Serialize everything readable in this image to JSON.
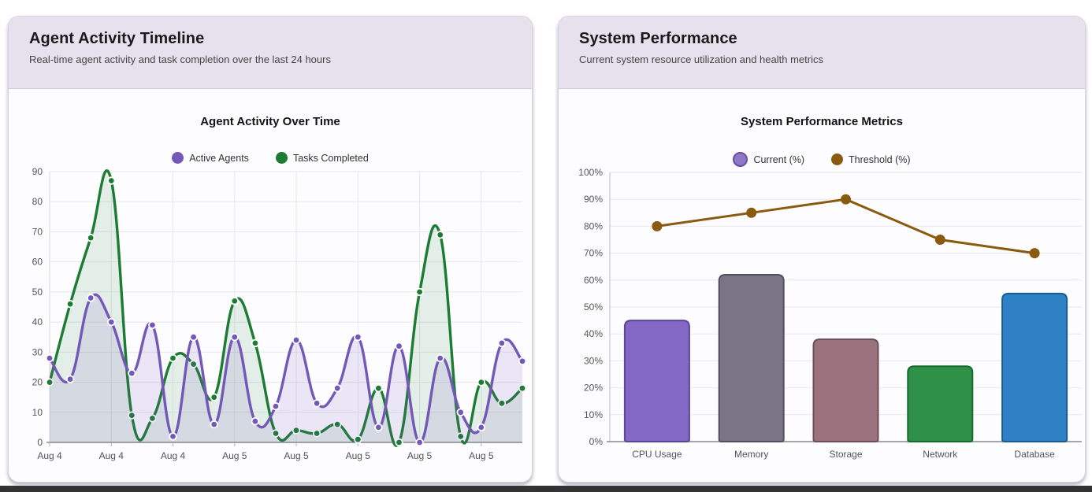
{
  "window": {
    "bottom_edge_color": "#333333",
    "card_header_bg": "#e7e1ed",
    "page_bg": "#ffffff"
  },
  "cards": [
    {
      "title": "Agent Activity Timeline",
      "subtitle": "Real-time agent activity and task completion over the last 24 hours"
    },
    {
      "title": "System Performance",
      "subtitle": "Current system resource utilization and health metrics"
    }
  ],
  "chart_data": [
    {
      "type": "area",
      "title": "Agent Activity Over Time",
      "legend_position": "top",
      "grid": true,
      "ylim": [
        0,
        90
      ],
      "yticks": [
        "0",
        "10",
        "20",
        "30",
        "40",
        "50",
        "60",
        "70",
        "80",
        "90"
      ],
      "tick_every": 3,
      "x_tick_labels": [
        "Aug 4",
        "Aug 4",
        "Aug 4",
        "Aug 5",
        "Aug 5",
        "Aug 5",
        "Aug 5",
        "Aug 5"
      ],
      "series": [
        {
          "name": "Active Agents",
          "color": "#7458b8",
          "fill": "rgba(116,88,184,0.13)",
          "values": [
            28,
            21,
            48,
            40,
            23,
            39,
            2,
            35,
            6,
            35,
            7,
            12,
            34,
            13,
            18,
            35,
            5,
            32,
            0,
            28,
            10,
            5,
            33,
            27
          ]
        },
        {
          "name": "Tasks Completed",
          "color": "#1c7c33",
          "fill": "rgba(28,124,51,0.11)",
          "values": [
            20,
            46,
            68,
            87,
            9,
            8,
            28,
            26,
            15,
            47,
            33,
            3,
            4,
            3,
            6,
            1,
            18,
            0,
            50,
            69,
            2,
            20,
            13,
            18
          ]
        }
      ]
    },
    {
      "type": "bar",
      "title": "System Performance Metrics",
      "legend_position": "top",
      "grid": true,
      "ylim": [
        0,
        100
      ],
      "yticks": [
        "0%",
        "10%",
        "20%",
        "30%",
        "40%",
        "50%",
        "60%",
        "70%",
        "80%",
        "90%",
        "100%"
      ],
      "categories": [
        "CPU Usage",
        "Memory",
        "Storage",
        "Network",
        "Database"
      ],
      "series": [
        {
          "name": "Current (%)",
          "kind": "bar",
          "values": [
            45,
            62,
            38,
            28,
            55
          ],
          "colors": [
            "#8468c6",
            "#7b7486",
            "#9b737c",
            "#2e9147",
            "#2e81c4"
          ],
          "border_colors": [
            "#5a4693",
            "#544f60",
            "#6d4e56",
            "#176b2e",
            "#1a5c92"
          ],
          "swatch": "#8f77c7",
          "swatch_border": "#67519f"
        },
        {
          "name": "Threshold (%)",
          "kind": "line",
          "values": [
            80,
            85,
            90,
            75,
            70
          ],
          "color": "#8a5a0e"
        }
      ]
    }
  ]
}
